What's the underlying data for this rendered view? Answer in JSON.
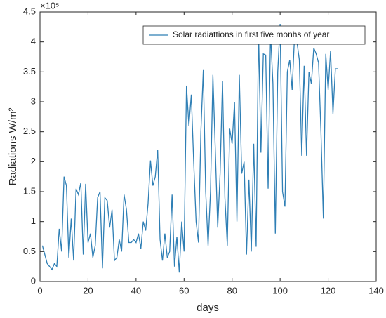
{
  "chart_data": {
    "type": "line",
    "ylabel": "Radiations W/m²",
    "xlabel": "days",
    "y_exponent": "×10⁵",
    "x": [
      1,
      2,
      3,
      4,
      5,
      6,
      7,
      8,
      9,
      10,
      11,
      12,
      13,
      14,
      15,
      16,
      17,
      18,
      19,
      20,
      21,
      22,
      23,
      24,
      25,
      26,
      27,
      28,
      29,
      30,
      31,
      32,
      33,
      34,
      35,
      36,
      37,
      38,
      39,
      40,
      41,
      42,
      43,
      44,
      45,
      46,
      47,
      48,
      49,
      50,
      51,
      52,
      53,
      54,
      55,
      56,
      57,
      58,
      59,
      60,
      61,
      62,
      63,
      64,
      65,
      66,
      67,
      68,
      69,
      70,
      71,
      72,
      73,
      74,
      75,
      76,
      77,
      78,
      79,
      80,
      81,
      82,
      83,
      84,
      85,
      86,
      87,
      88,
      89,
      90,
      91,
      92,
      93,
      94,
      95,
      96,
      97,
      98,
      99,
      100,
      101,
      102,
      103,
      104,
      105,
      106,
      107,
      108,
      109,
      110,
      111,
      112,
      113,
      114,
      115,
      116,
      117,
      118,
      119,
      120,
      121,
      122,
      123,
      124
    ],
    "series": [
      {
        "name": "Solar radiattions in first five monhs of year",
        "color": "#2f7fb5",
        "values": [
          0.6,
          0.45,
          0.3,
          0.25,
          0.2,
          0.3,
          0.25,
          0.88,
          0.5,
          1.75,
          1.6,
          0.4,
          1.05,
          0.35,
          1.55,
          1.45,
          1.65,
          0.45,
          1.63,
          0.65,
          0.8,
          0.4,
          0.6,
          1.4,
          1.5,
          0.22,
          1.4,
          1.35,
          0.9,
          1.2,
          0.35,
          0.4,
          0.7,
          0.5,
          1.45,
          1.2,
          0.65,
          0.65,
          0.7,
          0.65,
          0.8,
          0.55,
          1.0,
          0.85,
          1.3,
          2.02,
          1.6,
          1.75,
          2.2,
          0.7,
          0.35,
          0.8,
          0.4,
          0.5,
          1.45,
          0.25,
          0.75,
          0.15,
          1.0,
          0.5,
          3.27,
          2.6,
          3.12,
          2.0,
          1.0,
          0.65,
          2.5,
          3.53,
          1.5,
          0.6,
          1.5,
          3.45,
          2.2,
          0.9,
          1.8,
          3.35,
          1.4,
          0.6,
          2.55,
          2.3,
          3.0,
          1.0,
          3.45,
          1.8,
          2.0,
          0.45,
          1.7,
          0.5,
          2.3,
          0.58,
          4.2,
          2.15,
          3.8,
          3.78,
          1.55,
          4.15,
          3.3,
          0.8,
          3.5,
          4.3,
          1.5,
          1.25,
          3.5,
          3.7,
          3.2,
          4.1,
          4.0,
          3.7,
          2.1,
          3.6,
          2.1,
          3.5,
          3.3,
          3.9,
          3.8,
          3.65,
          2.5,
          1.05,
          3.8,
          3.2,
          3.85,
          2.8,
          3.55,
          3.55
        ]
      }
    ],
    "xlim": [
      0,
      140
    ],
    "xticks": [
      0,
      20,
      40,
      60,
      80,
      100,
      120,
      140
    ],
    "ylim": [
      0,
      4.5
    ],
    "yticks": [
      0,
      0.5,
      1,
      1.5,
      2,
      2.5,
      3,
      3.5,
      4,
      4.5
    ],
    "legend": "top-right"
  }
}
